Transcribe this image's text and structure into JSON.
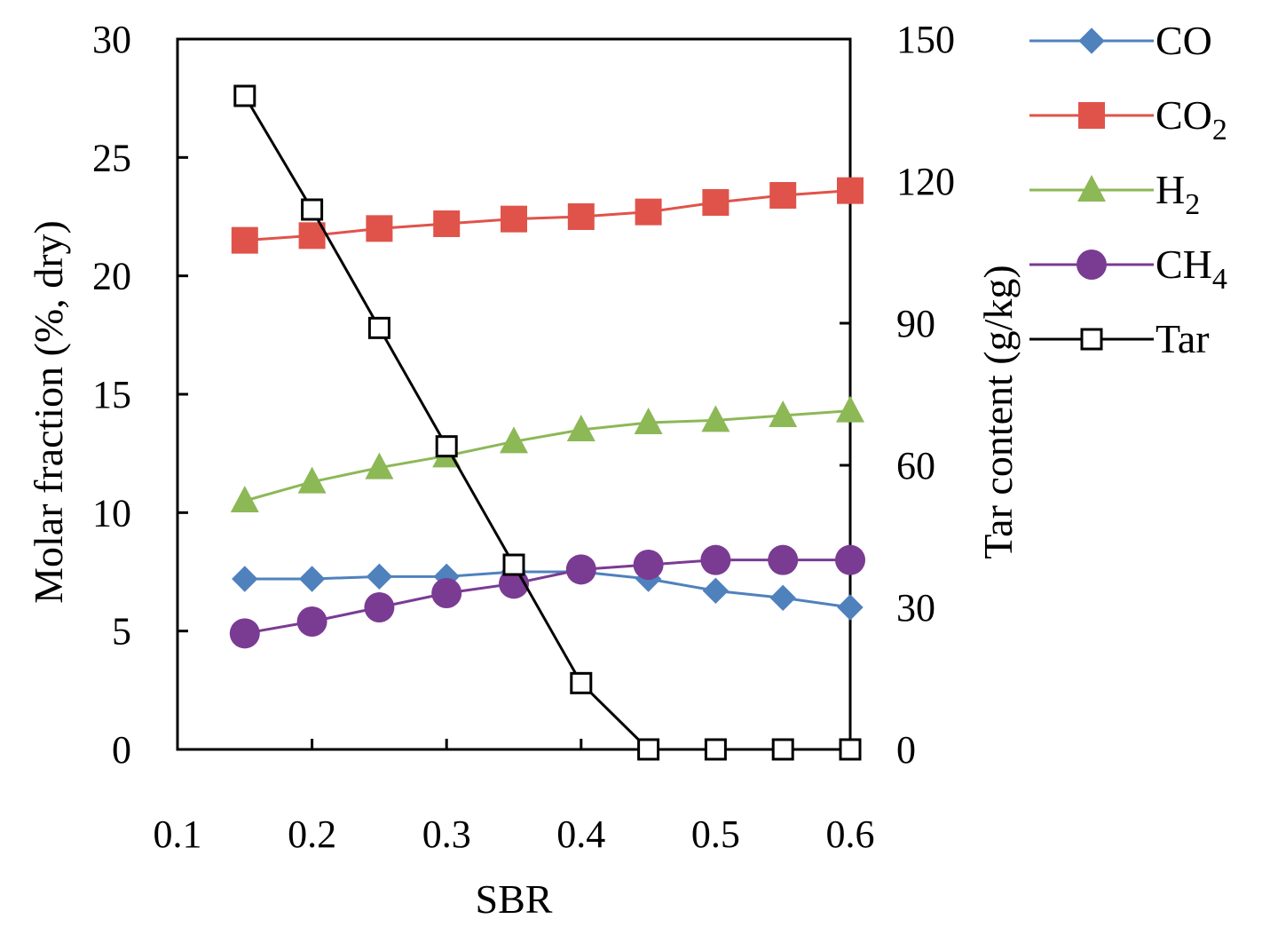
{
  "chart_data": {
    "type": "line",
    "title": "",
    "xlabel": "SBR",
    "ylabel_left": "Molar fraction (%, dry)",
    "ylabel_right": "Tar content (g/kg)",
    "xlim": [
      0.1,
      0.6
    ],
    "ylim_left": [
      0,
      30
    ],
    "ylim_right": [
      0,
      150
    ],
    "x_ticks": [
      "0.1",
      "0.2",
      "0.3",
      "0.4",
      "0.5",
      "0.6"
    ],
    "y_ticks_left": [
      "0",
      "5",
      "10",
      "15",
      "20",
      "25",
      "30"
    ],
    "y_ticks_right": [
      "0",
      "30",
      "60",
      "90",
      "120",
      "150"
    ],
    "x": [
      0.15,
      0.2,
      0.25,
      0.3,
      0.35,
      0.4,
      0.45,
      0.5,
      0.55,
      0.6
    ],
    "series": [
      {
        "name": "CO",
        "label_main": "CO",
        "label_sub": "",
        "axis": "left",
        "color": "#4f81bd",
        "marker": "diamond",
        "values": [
          7.2,
          7.2,
          7.3,
          7.3,
          7.5,
          7.5,
          7.2,
          6.7,
          6.4,
          6.0
        ]
      },
      {
        "name": "CO2",
        "label_main": "CO",
        "label_sub": "2",
        "axis": "left",
        "color": "#e0534a",
        "marker": "square",
        "values": [
          21.5,
          21.7,
          22.0,
          22.2,
          22.4,
          22.5,
          22.7,
          23.1,
          23.4,
          23.6
        ]
      },
      {
        "name": "H2",
        "label_main": "H",
        "label_sub": "2",
        "axis": "left",
        "color": "#8cb856",
        "marker": "triangle",
        "values": [
          10.5,
          11.3,
          11.9,
          12.4,
          13.0,
          13.5,
          13.8,
          13.9,
          14.1,
          14.3
        ]
      },
      {
        "name": "CH4",
        "label_main": "CH",
        "label_sub": "4",
        "axis": "left",
        "color": "#7a3b93",
        "marker": "circle",
        "values": [
          4.9,
          5.4,
          6.0,
          6.6,
          7.0,
          7.6,
          7.8,
          8.0,
          8.0,
          8.0
        ]
      },
      {
        "name": "Tar",
        "label_main": "Tar",
        "label_sub": "",
        "axis": "right",
        "color": "#000000",
        "marker": "open-square",
        "values": [
          138,
          114,
          89,
          64,
          39,
          14,
          0,
          0,
          0,
          0
        ]
      }
    ],
    "legend_position": "right"
  }
}
